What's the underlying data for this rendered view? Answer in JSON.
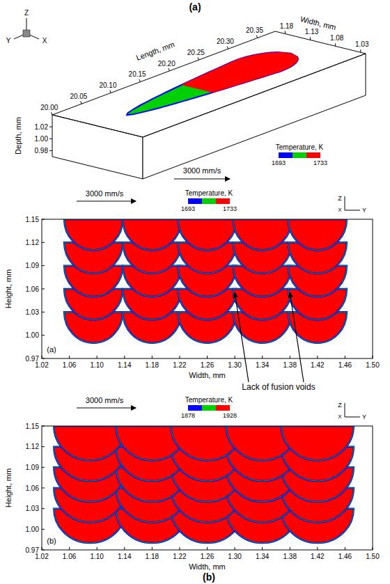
{
  "heading": "(a)",
  "view3d": {
    "axes": {
      "length": {
        "title": "Length, mm",
        "lim": [
          20.0,
          20.38
        ],
        "ticks": [
          {
            "value": 20.0,
            "label": "20.00"
          },
          20.05,
          {
            "value": 20.1,
            "label": "20.10"
          },
          20.15,
          {
            "value": 20.2,
            "label": "20.20"
          },
          20.25,
          {
            "value": 20.3,
            "label": "20.30"
          },
          20.35
        ]
      },
      "width": {
        "title": "Width, mm",
        "lim": [
          1.02,
          1.2
        ],
        "ticks": [
          1.03,
          1.08,
          1.13,
          1.18
        ]
      },
      "depth": {
        "title": "Depth, mm",
        "lim": [
          0.97,
          1.04
        ],
        "ticks": [
          {
            "value": 0.98,
            "label": "0.98"
          },
          {
            "value": 1.0,
            "label": "1.00"
          },
          1.02
        ]
      }
    },
    "triad": [
      "Z",
      "X",
      "Y"
    ],
    "speed": "3000 mm/s",
    "colorbar": {
      "title": "Temperature, K",
      "range": [
        1693,
        1733
      ],
      "colors": [
        "#0000ff",
        "#00d000",
        "#ff0000"
      ]
    },
    "pool": {
      "length_range": [
        20.05,
        20.33
      ],
      "center_width": 1.11,
      "half_width": 0.045,
      "hot_start": 20.17
    }
  },
  "chart_data": [
    {
      "type": "contour",
      "label": "(a)",
      "speed": "3000 mm/s",
      "colorbar": {
        "title": "Temperature, K",
        "range": [
          1693,
          1733
        ],
        "colors": [
          "#0000ff",
          "#00d000",
          "#ff0000"
        ]
      },
      "triad": [
        "Z",
        "X",
        "Y"
      ],
      "xlabel": "Width, mm",
      "ylabel": "Height, mm",
      "xlim": [
        1.02,
        1.5
      ],
      "ylim": [
        0.97,
        1.15
      ],
      "xticks": [
        1.02,
        1.06,
        {
          "value": 1.1,
          "label": "1.10"
        },
        1.14,
        1.18,
        1.22,
        1.26,
        {
          "value": 1.3,
          "label": "1.30"
        },
        1.34,
        1.38,
        1.42,
        1.46,
        {
          "value": 1.5,
          "label": "1.50"
        }
      ],
      "yticks": [
        0.97,
        {
          "value": 1.0,
          "label": "1.00"
        },
        1.03,
        1.06,
        1.09,
        1.12,
        1.15
      ],
      "track_centers": [
        1.095,
        1.18,
        1.26,
        1.34,
        1.42
      ],
      "layer_tops": [
        1.03,
        1.06,
        1.09,
        1.12,
        1.15
      ],
      "pool_width": 0.085,
      "pool_depth": 0.04
    },
    {
      "type": "contour",
      "label": "(b)",
      "speed": "3000 mm/s",
      "colorbar": {
        "title": "Temperature, K",
        "range": [
          1878,
          1928
        ],
        "colors": [
          "#0000ff",
          "#00d000",
          "#ff0000"
        ]
      },
      "triad": [
        "Z",
        "X",
        "Y"
      ],
      "xlabel": "Width, mm",
      "ylabel": "Height, mm",
      "xlim": [
        1.02,
        1.5
      ],
      "ylim": [
        0.97,
        1.15
      ],
      "xticks": [
        1.02,
        1.06,
        {
          "value": 1.1,
          "label": "1.10"
        },
        1.14,
        1.18,
        1.22,
        1.26,
        {
          "value": 1.3,
          "label": "1.30"
        },
        1.34,
        1.38,
        1.42,
        1.46,
        {
          "value": 1.5,
          "label": "1.50"
        }
      ],
      "yticks": [
        0.97,
        {
          "value": 1.0,
          "label": "1.00"
        },
        1.03,
        1.06,
        1.09,
        1.12,
        1.15
      ],
      "track_centers": [
        1.09,
        1.18,
        1.26,
        1.34,
        1.42
      ],
      "layer_tops": [
        1.03,
        1.06,
        1.09,
        1.12,
        1.15
      ],
      "pool_width": 0.105,
      "pool_depth": 0.05
    }
  ],
  "annotation": {
    "text": "Lack of fusion voids",
    "points": [
      {
        "x": 1.3,
        "y": 1.055
      },
      {
        "x": 1.38,
        "y": 1.055
      }
    ]
  },
  "caption": "(b)"
}
